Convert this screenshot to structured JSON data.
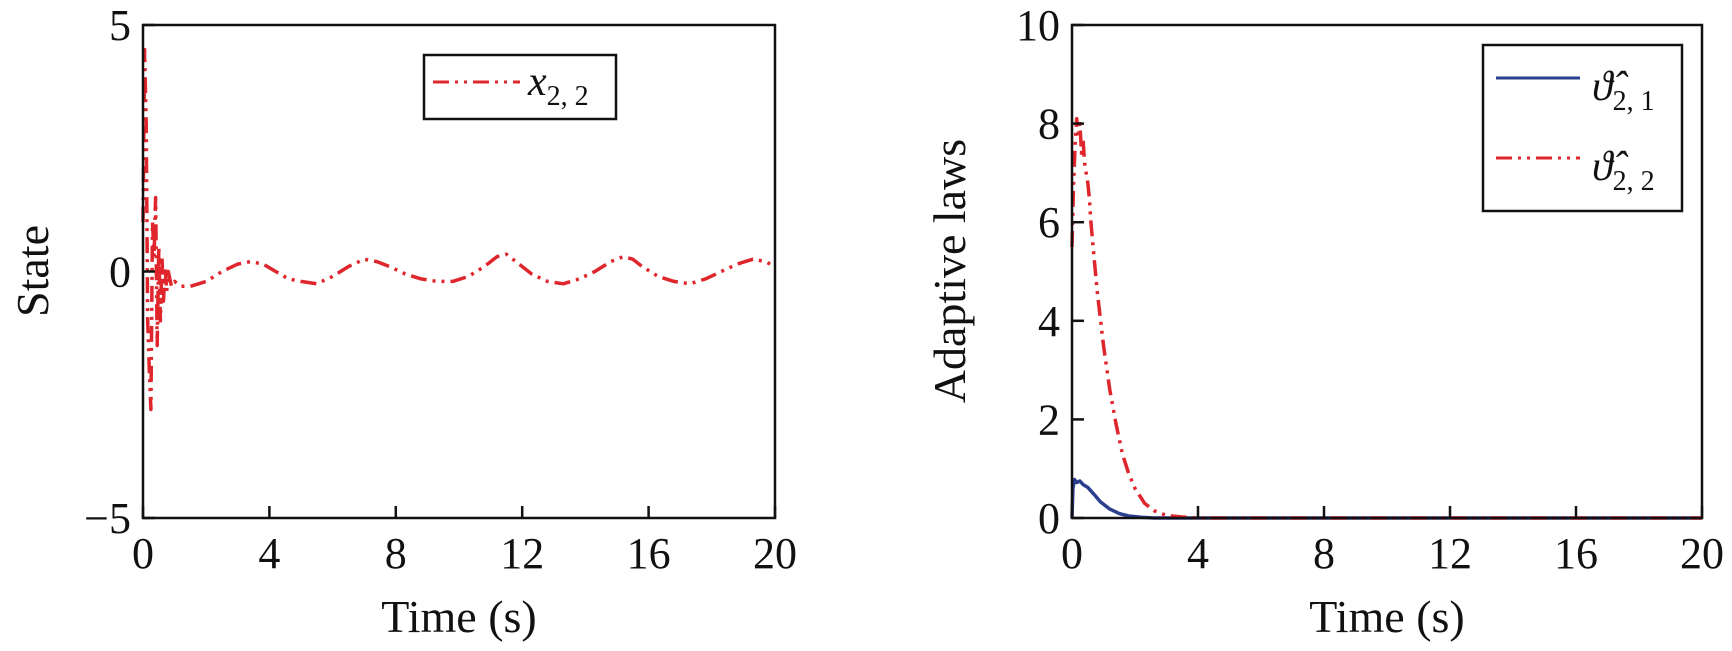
{
  "chart_data": [
    {
      "type": "line",
      "xlabel": "Time (s)",
      "ylabel": "State",
      "xlim": [
        0,
        20
      ],
      "ylim": [
        -5,
        5
      ],
      "xticks": [
        0,
        4,
        8,
        12,
        16,
        20
      ],
      "xtick_labels": [
        "0",
        "4",
        "8",
        "12",
        "16",
        "20"
      ],
      "yticks": [
        5,
        0,
        -5
      ],
      "ytick_labels": [
        "5",
        "0",
        "−5"
      ],
      "grid": false,
      "legend_position": "top-right",
      "series": [
        {
          "name": "x2, 2",
          "legend_symbol": "x",
          "legend_subscript": "2, 2",
          "color": "#e0262d",
          "style": "dash-dot",
          "x": [
            0,
            0.05,
            0.1,
            0.15,
            0.2,
            0.25,
            0.3,
            0.35,
            0.4,
            0.45,
            0.5,
            0.55,
            0.6,
            0.65,
            0.7,
            0.75,
            0.8,
            0.9,
            1.0,
            1.2,
            1.5,
            2.0,
            2.5,
            3.0,
            3.4,
            3.8,
            4.2,
            4.6,
            5.0,
            5.5,
            6.0,
            6.5,
            7.0,
            7.4,
            7.8,
            8.3,
            8.8,
            9.3,
            9.8,
            10.3,
            10.8,
            11.2,
            11.5,
            11.8,
            12.3,
            12.8,
            13.3,
            13.8,
            14.3,
            14.8,
            15.2,
            15.5,
            15.8,
            16.3,
            16.8,
            17.3,
            17.8,
            18.3,
            18.8,
            19.3,
            19.7,
            20.0
          ],
          "y": [
            1.0,
            4.5,
            3.0,
            -1.0,
            -2.0,
            -2.8,
            1.0,
            0.3,
            1.5,
            -1.5,
            0.5,
            -1.0,
            0.3,
            -0.6,
            0.1,
            -0.4,
            0.0,
            -0.3,
            -0.2,
            -0.3,
            -0.3,
            -0.2,
            0.0,
            0.15,
            0.2,
            0.15,
            0.0,
            -0.15,
            -0.2,
            -0.25,
            -0.1,
            0.1,
            0.25,
            0.2,
            0.1,
            -0.05,
            -0.15,
            -0.2,
            -0.2,
            -0.1,
            0.1,
            0.3,
            0.35,
            0.2,
            -0.05,
            -0.2,
            -0.25,
            -0.15,
            0.0,
            0.2,
            0.3,
            0.25,
            0.1,
            -0.1,
            -0.2,
            -0.25,
            -0.15,
            0.0,
            0.15,
            0.25,
            0.2,
            0.1
          ]
        }
      ]
    },
    {
      "type": "line",
      "xlabel": "Time (s)",
      "ylabel": "Adaptive laws",
      "xlim": [
        0,
        20
      ],
      "ylim": [
        0,
        10
      ],
      "xticks": [
        0,
        4,
        8,
        12,
        16,
        20
      ],
      "xtick_labels": [
        "0",
        "4",
        "8",
        "12",
        "16",
        "20"
      ],
      "yticks": [
        0,
        2,
        4,
        6,
        8,
        10
      ],
      "ytick_labels": [
        "0",
        "2",
        "4",
        "6",
        "8",
        "10"
      ],
      "grid": false,
      "legend_position": "top-right",
      "series": [
        {
          "name": "ϑ̂2, 1",
          "legend_symbol": "ϑ̂",
          "legend_subscript": "2, 1",
          "color": "#2b3f8f",
          "style": "solid",
          "x": [
            0,
            0.03,
            0.08,
            0.15,
            0.25,
            0.35,
            0.5,
            0.7,
            0.9,
            1.2,
            1.5,
            1.8,
            2.2,
            2.6,
            3.0,
            4.0,
            8.0,
            12.0,
            16.0,
            20.0
          ],
          "y": [
            0,
            0.6,
            0.78,
            0.72,
            0.75,
            0.68,
            0.62,
            0.48,
            0.33,
            0.18,
            0.09,
            0.04,
            0.015,
            0.0,
            0.0,
            0.0,
            0.0,
            0.0,
            0.0,
            0.0
          ]
        },
        {
          "name": "ϑ̂2, 2",
          "legend_symbol": "ϑ̂",
          "legend_subscript": "2, 2",
          "color": "#e0262d",
          "style": "dash-dot",
          "x": [
            0,
            0.05,
            0.1,
            0.15,
            0.2,
            0.25,
            0.3,
            0.35,
            0.4,
            0.45,
            0.5,
            0.55,
            0.6,
            0.7,
            0.8,
            1.0,
            1.2,
            1.4,
            1.6,
            1.8,
            2.0,
            2.3,
            2.6,
            3.0,
            3.5,
            4.0,
            8.0,
            12.0,
            16.0,
            20.0
          ],
          "y": [
            5.5,
            6.8,
            7.6,
            8.1,
            7.8,
            8.0,
            7.4,
            7.7,
            7.2,
            7.0,
            6.8,
            6.5,
            6.0,
            5.3,
            4.6,
            3.5,
            2.6,
            1.9,
            1.3,
            0.9,
            0.6,
            0.3,
            0.15,
            0.05,
            0.02,
            0.0,
            0.0,
            0.0,
            0.0,
            0.0
          ]
        }
      ]
    }
  ]
}
